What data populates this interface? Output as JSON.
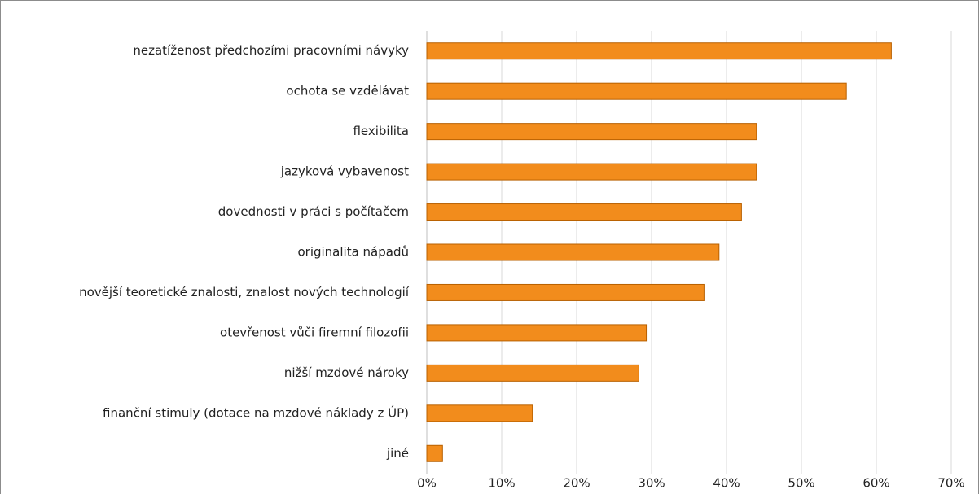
{
  "chart_data": {
    "type": "bar",
    "orientation": "horizontal",
    "categories": [
      "nezatíženost předchozími pracovními návyky",
      "ochota se vzdělávat",
      "flexibilita",
      "jazyková vybavenost",
      "dovednosti v práci s počítačem",
      "originalita nápadů",
      "novější teoretické znalosti, znalost nových technologií",
      "otevřenost vůči firemní filozofii",
      "nižší mzdové nároky",
      "finanční stimuly (dotace na mzdové náklady z ÚP)",
      "jiné"
    ],
    "values": [
      62,
      56,
      44,
      44,
      42,
      39,
      37,
      29.3,
      28.3,
      14.1,
      2.1
    ],
    "color": "#f28c1c",
    "xlim": [
      0,
      70
    ],
    "xticks": [
      {
        "value": 0,
        "label": "0%"
      },
      {
        "value": 10,
        "label": "10%"
      },
      {
        "value": 20,
        "label": "20%"
      },
      {
        "value": 30,
        "label": "30%"
      },
      {
        "value": 40,
        "label": "40%"
      },
      {
        "value": 50,
        "label": "50%"
      },
      {
        "value": 60,
        "label": "60%"
      },
      {
        "value": 70,
        "label": "70%"
      }
    ],
    "grid": true
  }
}
